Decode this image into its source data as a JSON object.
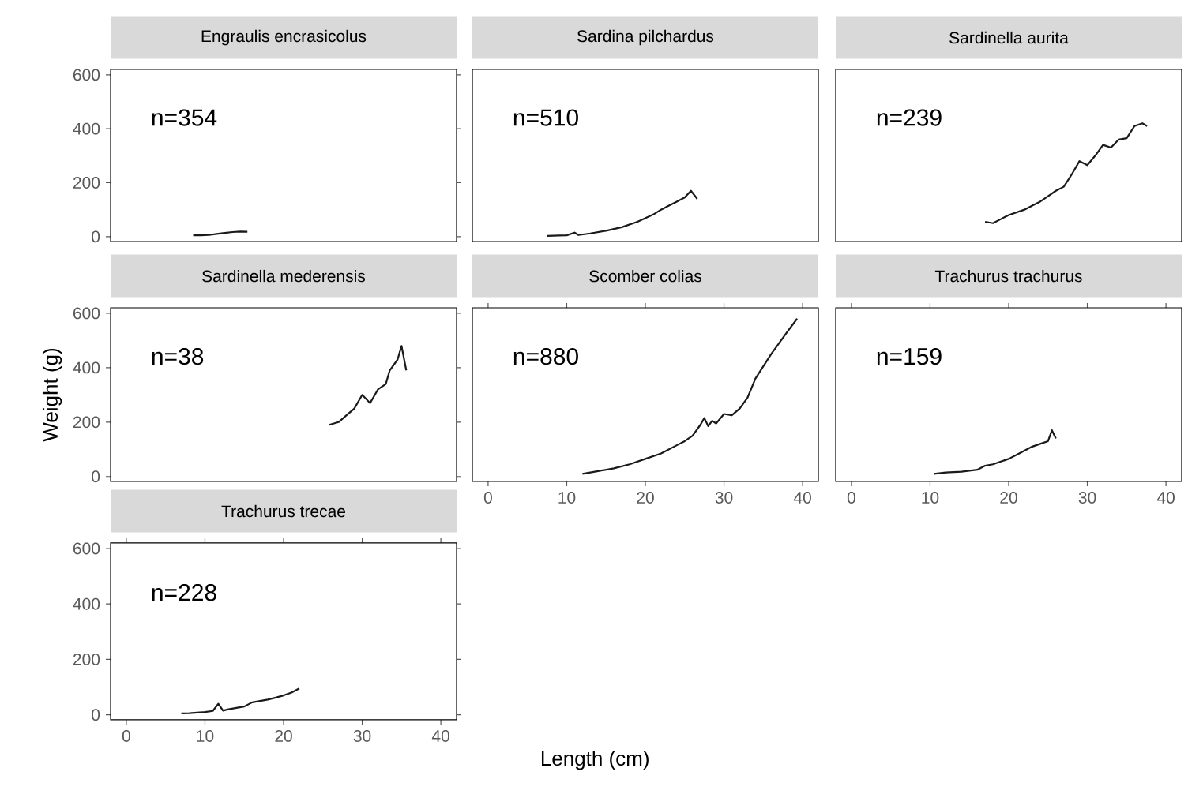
{
  "chart_data": [
    {
      "type": "line",
      "title": "Engraulis encrasicolus",
      "annotations": [
        "n=354"
      ],
      "x": [
        8.5,
        9.5,
        10.5,
        11.5,
        12.5,
        13.5,
        14.5,
        15.4
      ],
      "values": [
        5,
        5,
        6,
        10,
        14,
        17,
        19,
        18
      ],
      "color": "#1a1a1a",
      "xlim": [
        -2,
        42
      ],
      "ylim": [
        -18,
        620
      ],
      "xticks": [
        0,
        10,
        20,
        30,
        40
      ],
      "yticks": [
        0,
        200,
        400,
        600
      ],
      "tick_labels": "y"
    },
    {
      "type": "line",
      "title": "Sardina pilchardus",
      "annotations": [
        "n=510"
      ],
      "x": [
        7.5,
        9,
        10,
        11,
        11.5,
        13,
        15,
        17,
        19,
        21,
        22,
        23,
        24,
        25,
        25.8,
        26.6
      ],
      "values": [
        3,
        4,
        5,
        15,
        6,
        12,
        22,
        35,
        55,
        82,
        100,
        115,
        130,
        145,
        170,
        140
      ],
      "color": "#1a1a1a",
      "xlim": [
        -2,
        42
      ],
      "ylim": [
        -18,
        620
      ],
      "xticks": [
        0,
        10,
        20,
        30,
        40
      ],
      "yticks": [
        0,
        200,
        400,
        600
      ],
      "tick_labels": false
    },
    {
      "type": "line",
      "title": "Sardinella aurita",
      "annotations": [
        "n=239"
      ],
      "x": [
        17,
        18,
        19,
        20,
        21,
        22,
        23,
        24,
        25,
        26,
        27,
        28,
        29,
        30,
        31,
        32,
        33,
        34,
        35,
        36,
        37,
        37.6
      ],
      "values": [
        55,
        50,
        65,
        80,
        90,
        100,
        115,
        130,
        150,
        170,
        185,
        230,
        280,
        265,
        300,
        340,
        330,
        360,
        365,
        410,
        420,
        410
      ],
      "color": "#1a1a1a",
      "xlim": [
        -2,
        42
      ],
      "ylim": [
        -18,
        620
      ],
      "xticks": [
        0,
        10,
        20,
        30,
        40
      ],
      "yticks": [
        0,
        200,
        400,
        600
      ],
      "tick_labels": false
    },
    {
      "type": "line",
      "title": "Sardinella mederensis",
      "annotations": [
        "n=38"
      ],
      "ylabel": "Weight (g)",
      "x": [
        25.8,
        27,
        28,
        29,
        30,
        31,
        32,
        33,
        33.5,
        34.5,
        35,
        35.6
      ],
      "values": [
        190,
        200,
        225,
        250,
        300,
        270,
        320,
        340,
        390,
        430,
        480,
        390
      ],
      "color": "#1a1a1a",
      "xlim": [
        -2,
        42
      ],
      "ylim": [
        -18,
        620
      ],
      "xticks": [
        0,
        10,
        20,
        30,
        40
      ],
      "yticks": [
        0,
        200,
        400,
        600
      ],
      "tick_labels": "y"
    },
    {
      "type": "line",
      "title": "Scomber colias",
      "annotations": [
        "n=880"
      ],
      "x": [
        12,
        14,
        16,
        18,
        20,
        22,
        24,
        25,
        26,
        27,
        27.5,
        28,
        28.5,
        29,
        30,
        31,
        32,
        33,
        34,
        36,
        38,
        39.3
      ],
      "values": [
        10,
        20,
        30,
        45,
        65,
        85,
        115,
        130,
        150,
        190,
        215,
        185,
        205,
        195,
        230,
        225,
        250,
        290,
        360,
        450,
        530,
        580
      ],
      "color": "#1a1a1a",
      "xlim": [
        -2,
        42
      ],
      "ylim": [
        -18,
        620
      ],
      "xticks": [
        0,
        10,
        20,
        30,
        40
      ],
      "yticks": [
        0,
        200,
        400,
        600
      ],
      "tick_labels": "x"
    },
    {
      "type": "line",
      "title": "Trachurus trachurus",
      "annotations": [
        "n=159"
      ],
      "x": [
        10.5,
        12,
        14,
        16,
        17,
        18,
        19,
        20,
        21,
        22,
        23,
        24,
        25,
        25.5,
        26
      ],
      "values": [
        10,
        15,
        18,
        25,
        40,
        45,
        55,
        65,
        80,
        95,
        110,
        120,
        130,
        170,
        140
      ],
      "color": "#1a1a1a",
      "xlim": [
        -2,
        42
      ],
      "ylim": [
        -18,
        620
      ],
      "xticks": [
        0,
        10,
        20,
        30,
        40
      ],
      "yticks": [
        0,
        200,
        400,
        600
      ],
      "tick_labels": "x"
    },
    {
      "type": "line",
      "title": "Trachurus trecae",
      "annotations": [
        "n=228"
      ],
      "xlabel": "Length (cm)",
      "x": [
        7,
        8,
        9,
        10,
        11,
        11.7,
        12.3,
        13,
        14,
        15,
        16,
        17,
        18,
        19,
        20,
        21,
        22
      ],
      "values": [
        5,
        6,
        8,
        10,
        14,
        40,
        15,
        20,
        25,
        30,
        45,
        50,
        55,
        62,
        70,
        80,
        95
      ],
      "color": "#1a1a1a",
      "xlim": [
        -2,
        42
      ],
      "ylim": [
        -18,
        620
      ],
      "xticks": [
        0,
        10,
        20,
        30,
        40
      ],
      "yticks": [
        0,
        200,
        400,
        600
      ]
    }
  ]
}
